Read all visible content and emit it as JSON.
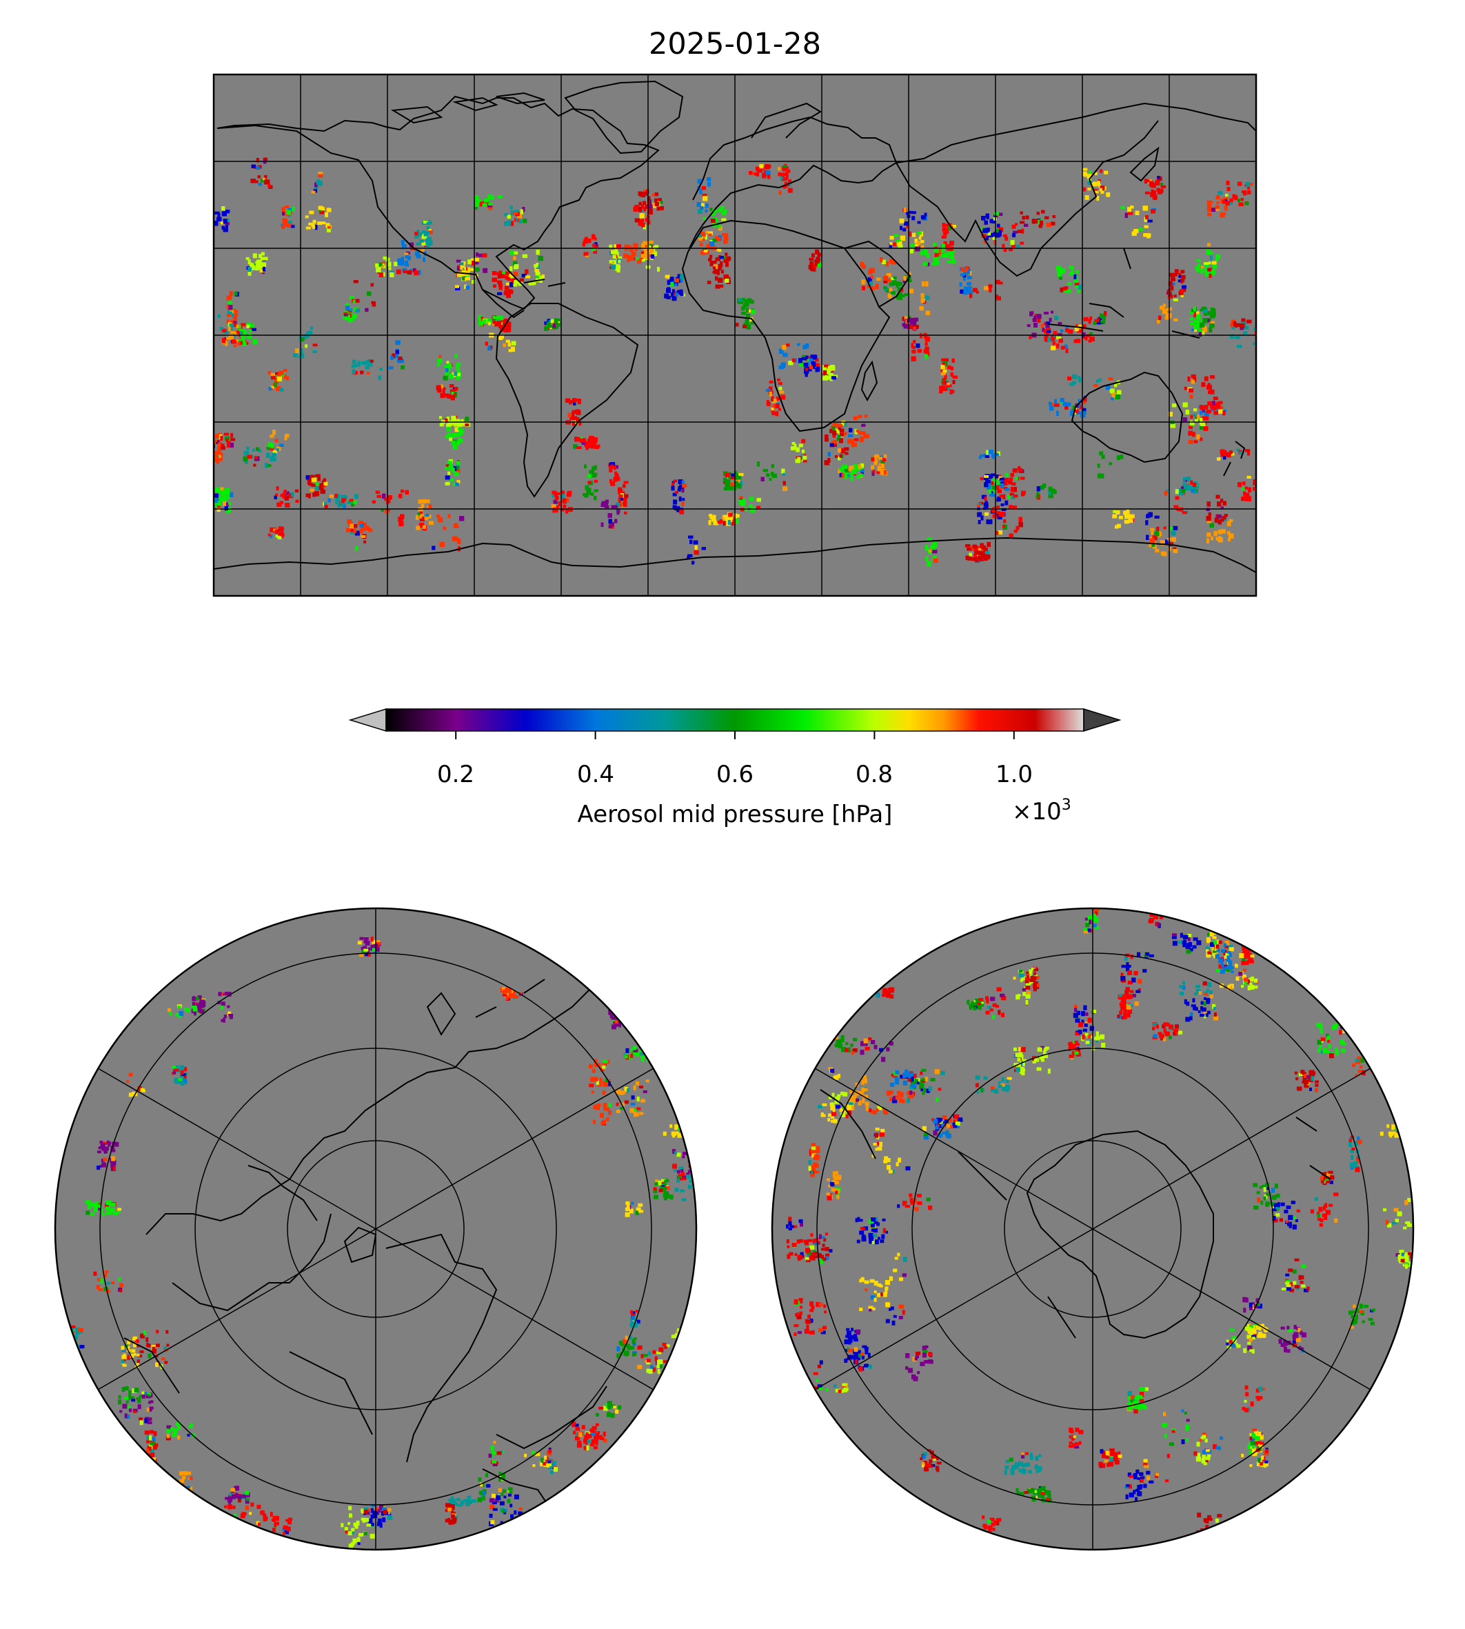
{
  "figure": {
    "title": "2025-01-28",
    "map_background_color": "#808080",
    "coastline_color": "#000000"
  },
  "colorbar": {
    "label": "Aerosol mid pressure [hPa]",
    "multiplier_base": "×10",
    "multiplier_exponent": "3",
    "ticks": [
      {
        "value": 0.2,
        "label": "0.2"
      },
      {
        "value": 0.4,
        "label": "0.4"
      },
      {
        "value": 0.6,
        "label": "0.6"
      },
      {
        "value": 0.8,
        "label": "0.8"
      },
      {
        "value": 1.0,
        "label": "1.0"
      }
    ],
    "range": [
      0.1,
      1.1
    ],
    "extend": "both",
    "colormap": "nipy_spectral",
    "under_color": "#c0c0c0",
    "over_color": "#404040"
  },
  "maps": [
    {
      "name": "global",
      "projection": "equirectangular"
    },
    {
      "name": "north-polar",
      "projection": "north polar stereographic"
    },
    {
      "name": "south-polar",
      "projection": "south polar stereographic"
    }
  ]
}
